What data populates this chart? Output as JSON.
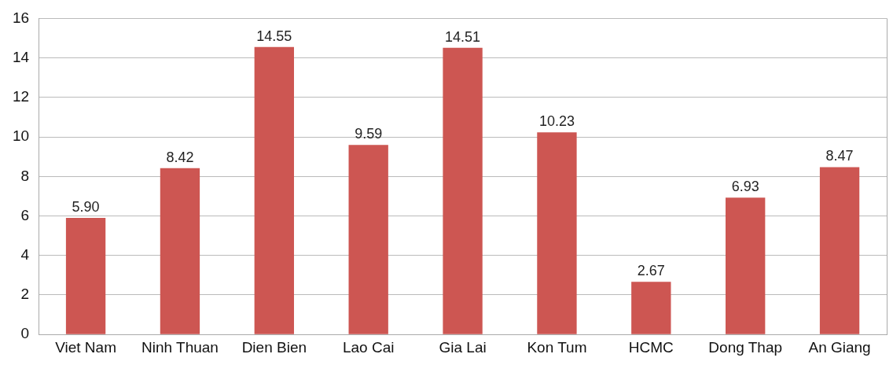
{
  "chart_data": {
    "type": "bar",
    "categories": [
      "Viet Nam",
      "Ninh Thuan",
      "Dien Bien",
      "Lao Cai",
      "Gia Lai",
      "Kon Tum",
      "HCMC",
      "Dong Thap",
      "An Giang"
    ],
    "values": [
      5.9,
      8.42,
      14.55,
      9.59,
      14.51,
      10.23,
      2.67,
      6.93,
      8.47
    ],
    "value_labels": [
      "5.90",
      "8.42",
      "14.55",
      "9.59",
      "14.51",
      "10.23",
      "2.67",
      "6.93",
      "8.47"
    ],
    "color": "#cd5652",
    "ylim": [
      0,
      16
    ],
    "yticks": [
      0,
      2,
      4,
      6,
      8,
      10,
      12,
      14,
      16
    ],
    "grid": "y",
    "legend": false
  }
}
